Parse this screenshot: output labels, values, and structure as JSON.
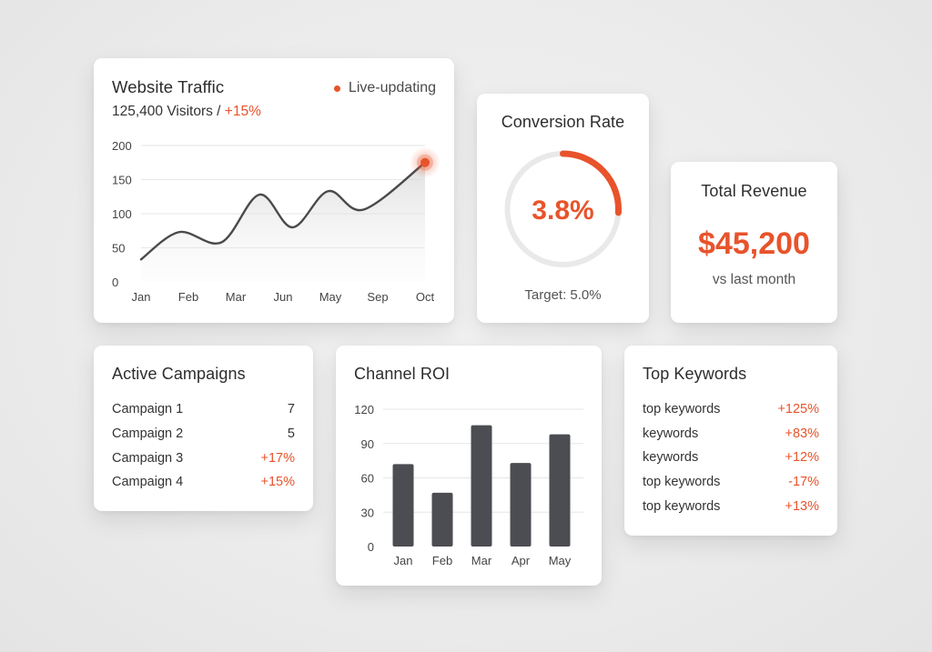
{
  "colors": {
    "accent": "#e8532b",
    "bar": "#4b4d52",
    "line": "#4a4a4a",
    "grid": "#e6e6e6",
    "ring_track": "#e9e9e9"
  },
  "traffic": {
    "title": "Website Traffic",
    "live_label": "Live-updating",
    "visitors": "125,400 Visitors",
    "separator": " / ",
    "change": "+15%",
    "chart_data": {
      "type": "line",
      "title": "Website Traffic",
      "x_ticks": [
        "Jan",
        "Feb",
        "Mar",
        "Jun",
        "May",
        "Sep",
        "Oct"
      ],
      "y_ticks": [
        0,
        50,
        100,
        150,
        200
      ],
      "ylim": [
        0,
        200
      ],
      "grid": true,
      "series": [
        {
          "points": [
            [
              0,
              33
            ],
            [
              0.8,
              73
            ],
            [
              1.7,
              58
            ],
            [
              2.5,
              128
            ],
            [
              3.2,
              80
            ],
            [
              3.95,
              133
            ],
            [
              4.7,
              106
            ],
            [
              6,
              175
            ]
          ]
        }
      ],
      "highlight_last_point": true
    }
  },
  "conversion": {
    "title": "Conversion Rate",
    "value_label": "3.8%",
    "value": 3.8,
    "ring_fraction": 0.26,
    "target_label": "Target: 5.0%"
  },
  "revenue": {
    "title": "Total Revenue",
    "value": "$45,200",
    "sub": "vs last month"
  },
  "campaigns": {
    "title": "Active Campaigns",
    "rows": [
      {
        "name": "Campaign 1",
        "value": "7",
        "highlight": false
      },
      {
        "name": "Campaign 2",
        "value": "5",
        "highlight": false
      },
      {
        "name": "Campaign 3",
        "value": "+17%",
        "highlight": true
      },
      {
        "name": "Campaign 4",
        "value": "+15%",
        "highlight": true
      }
    ]
  },
  "roi": {
    "title": "Channel ROI",
    "chart_data": {
      "type": "bar",
      "title": "Channel ROI",
      "categories": [
        "Jan",
        "Feb",
        "Mar",
        "Apr",
        "May"
      ],
      "values": [
        72,
        47,
        106,
        73,
        98
      ],
      "y_ticks": [
        0,
        30,
        60,
        90,
        120
      ],
      "ylim": [
        0,
        120
      ],
      "grid": true
    }
  },
  "keywords": {
    "title": "Top Keywords",
    "rows": [
      {
        "name": "top keywords",
        "value": "+125%"
      },
      {
        "name": "keywords",
        "value": "+83%"
      },
      {
        "name": "keywords",
        "value": "+12%"
      },
      {
        "name": "top keywords",
        "value": "-17%"
      },
      {
        "name": "top keywords",
        "value": "+13%"
      }
    ]
  }
}
